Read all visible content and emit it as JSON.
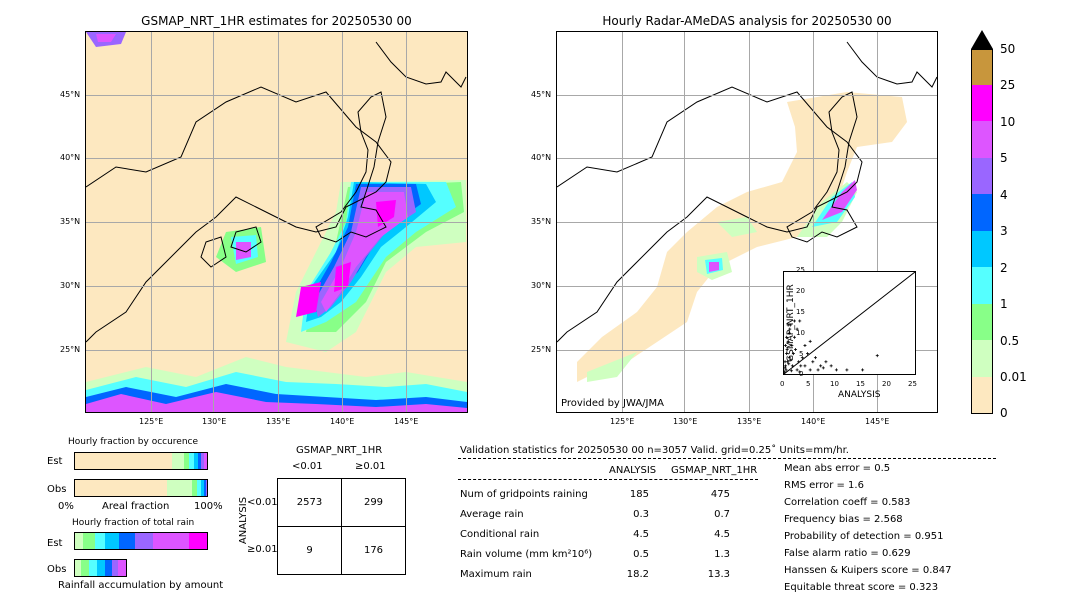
{
  "left_map": {
    "title": "GSMAP_NRT_1HR estimates for 20250530 00",
    "lat_ticks": [
      "45°N",
      "40°N",
      "35°N",
      "30°N",
      "25°N"
    ],
    "lon_ticks": [
      "125°E",
      "130°E",
      "135°E",
      "140°E",
      "145°E"
    ]
  },
  "right_map": {
    "title": "Hourly Radar-AMeDAS analysis for 20250530 00",
    "lat_ticks": [
      "45°N",
      "40°N",
      "35°N",
      "30°N",
      "25°N"
    ],
    "lon_ticks": [
      "125°E",
      "130°E",
      "135°E",
      "140°E",
      "145°E"
    ],
    "credit": "Provided by JWA/JMA"
  },
  "colorbar": {
    "labels": [
      "50",
      "25",
      "10",
      "5",
      "4",
      "3",
      "2",
      "1",
      "0.5",
      "0.01",
      "0"
    ],
    "colors": [
      "#c8963c",
      "#ff00ff",
      "#dd55ff",
      "#9a66ff",
      "#0066ff",
      "#00c8ff",
      "#55ffff",
      "#88ff88",
      "#cfffc0",
      "#fde8c0"
    ]
  },
  "chart_data": [
    {
      "type": "scatter",
      "xlabel": "ANALYSIS",
      "ylabel": "GSMAP_NRT_1HR",
      "xlim": [
        0,
        25
      ],
      "ylim": [
        0,
        25
      ],
      "x_ticks": [
        "0",
        "5",
        "10",
        "15",
        "20",
        "25"
      ],
      "y_ticks": [
        "0",
        "5",
        "10",
        "15",
        "20",
        "25"
      ],
      "points": [
        [
          0.2,
          3
        ],
        [
          0.5,
          5
        ],
        [
          0.8,
          8
        ],
        [
          1,
          10
        ],
        [
          1.2,
          12
        ],
        [
          0.3,
          2
        ],
        [
          0.6,
          6
        ],
        [
          1.5,
          7
        ],
        [
          2,
          9
        ],
        [
          2.5,
          11
        ],
        [
          3,
          13
        ],
        [
          1,
          4
        ],
        [
          0.4,
          1
        ],
        [
          0.7,
          3
        ],
        [
          1.8,
          5
        ],
        [
          2.2,
          6
        ],
        [
          3.5,
          4
        ],
        [
          4,
          7
        ],
        [
          4.5,
          5
        ],
        [
          5,
          8
        ],
        [
          5.5,
          3
        ],
        [
          6,
          4
        ],
        [
          7,
          2
        ],
        [
          8,
          3
        ],
        [
          9,
          2
        ],
        [
          10,
          1
        ],
        [
          0.1,
          0.5
        ],
        [
          0.2,
          1.5
        ],
        [
          0.9,
          2.5
        ],
        [
          1.3,
          3.5
        ],
        [
          1.6,
          2
        ],
        [
          2.8,
          3
        ],
        [
          3.2,
          2
        ],
        [
          0.5,
          9
        ],
        [
          1.1,
          11
        ],
        [
          0.3,
          7
        ],
        [
          0.8,
          12
        ],
        [
          2,
          13
        ],
        [
          6.5,
          1
        ],
        [
          12,
          1
        ],
        [
          15,
          1
        ],
        [
          17.8,
          4.5
        ],
        [
          2.5,
          1
        ],
        [
          4,
          2
        ],
        [
          5,
          1
        ],
        [
          7.5,
          1.5
        ],
        [
          3,
          0.5
        ],
        [
          1.4,
          0.8
        ]
      ]
    },
    {
      "type": "bar",
      "title": "Hourly fraction by occurence",
      "categories": [
        "Est",
        "Obs"
      ],
      "xlabel": "Areal fraction",
      "x_ticks": [
        "0%",
        "100%"
      ]
    },
    {
      "type": "bar",
      "title": "Hourly fraction of total rain",
      "categories": [
        "Est",
        "Obs"
      ],
      "xlabel": "Rainfall accumulation by amount"
    }
  ],
  "contingency": {
    "title": "GSMAP_NRT_1HR",
    "col_headers": [
      "<0.01",
      "≥0.01"
    ],
    "row_axis": "ANALYSIS",
    "row_headers": [
      "<0.01",
      "≥0.01"
    ],
    "cells": [
      [
        "2573",
        "299"
      ],
      [
        "9",
        "176"
      ]
    ]
  },
  "validation": {
    "header": "Validation statistics for 20250530 00  n=3057 Valid. grid=0.25˚ Units=mm/hr.",
    "col_a": "ANALYSIS",
    "col_b": "GSMAP_NRT_1HR",
    "rows": [
      {
        "label": "Num of gridpoints raining",
        "a": "185",
        "b": "475"
      },
      {
        "label": "Average rain",
        "a": "0.3",
        "b": "0.7"
      },
      {
        "label": "Conditional rain",
        "a": "4.5",
        "b": "4.5"
      },
      {
        "label": "Rain volume (mm km²10⁶)",
        "a": "0.5",
        "b": "1.3"
      },
      {
        "label": "Maximum rain",
        "a": "18.2",
        "b": "13.3"
      }
    ],
    "scores": [
      "Mean abs error =    0.5",
      "RMS error =    1.6",
      "Correlation coeff =  0.583",
      "Frequency bias =  2.568",
      "Probability of detection =  0.951",
      "False alarm ratio =  0.629",
      "Hanssen & Kuipers score =  0.847",
      "Equitable threat score =  0.323"
    ]
  }
}
